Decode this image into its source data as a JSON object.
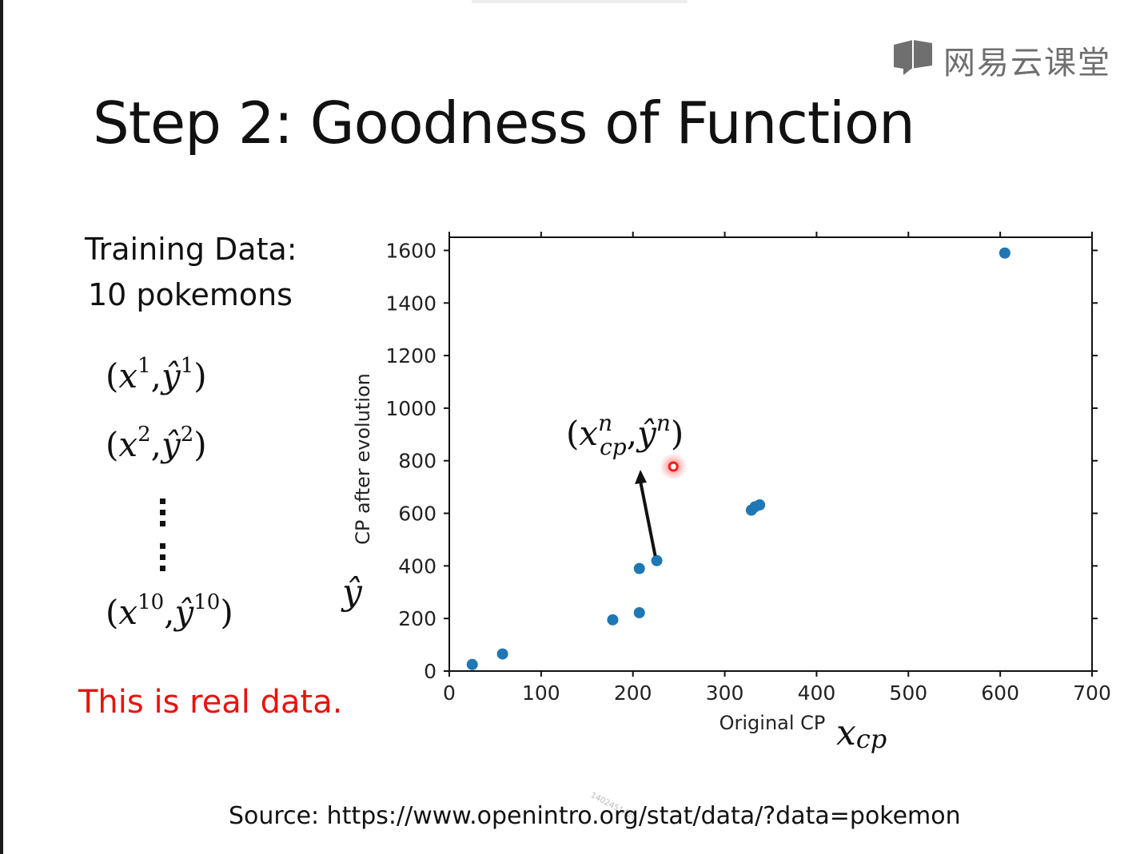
{
  "header": {
    "logo_text": "网易云课堂",
    "title": "Step 2: Goodness of Function"
  },
  "left_panel": {
    "training_line1": "Training Data:",
    "training_line2": "10 pokemons",
    "tuples": [
      {
        "open": "(",
        "x": "x",
        "x_sup": "1",
        "sep": ",",
        "y": "ŷ",
        "y_sup": "1",
        "close": ")"
      },
      {
        "open": "(",
        "x": "x",
        "x_sup": "2",
        "sep": ",",
        "y": "ŷ",
        "y_sup": "2",
        "close": ")"
      },
      {
        "open": "(",
        "x": "x",
        "x_sup": "10",
        "sep": ",",
        "y": "ŷ",
        "y_sup": "10",
        "close": ")"
      }
    ],
    "real_data_note": "This is real data."
  },
  "math_labels": {
    "y_hat": "ŷ",
    "x_main": "x",
    "x_sub": "cp",
    "annotation": {
      "open": "(",
      "x": "x",
      "sup_n": "n",
      "sub_cp": "cp",
      "sep": ",",
      "y": "ŷ",
      "y_sup": "n",
      "close": ")"
    }
  },
  "footer": {
    "source": "Source: https://www.openintro.org/stat/data/?data=pokemon",
    "watermark": "1402451429"
  },
  "colors": {
    "point": "#1f77b4",
    "highlight": "#ff1a1a",
    "real_note": "#e8130e"
  },
  "chart_data": {
    "type": "scatter",
    "xlabel": "Original CP",
    "ylabel": "CP after evolution",
    "xlim": [
      0,
      700
    ],
    "ylim": [
      0,
      1650
    ],
    "xticks": [
      0,
      100,
      200,
      300,
      400,
      500,
      600,
      700
    ],
    "yticks": [
      0,
      200,
      400,
      600,
      800,
      1000,
      1200,
      1400,
      1600
    ],
    "grid": false,
    "points": [
      {
        "x": 25,
        "y": 25
      },
      {
        "x": 58,
        "y": 65
      },
      {
        "x": 178,
        "y": 195
      },
      {
        "x": 207,
        "y": 222
      },
      {
        "x": 207,
        "y": 390
      },
      {
        "x": 226,
        "y": 420
      },
      {
        "x": 329,
        "y": 612
      },
      {
        "x": 333,
        "y": 625
      },
      {
        "x": 338,
        "y": 632
      },
      {
        "x": 605,
        "y": 1590
      }
    ],
    "highlight_point": {
      "x": 244,
      "y": 778
    },
    "annotated_point": {
      "x": 226,
      "y": 420
    }
  }
}
